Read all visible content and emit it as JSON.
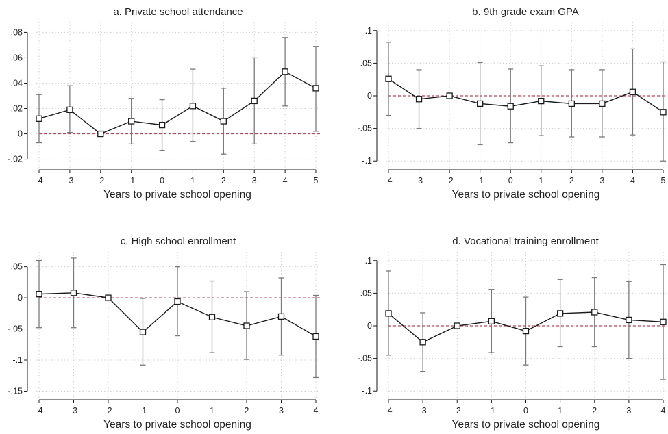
{
  "colors": {
    "line": "#1a1a1a",
    "errorbar": "#7a7a7a",
    "zero_line": "#b04a5e",
    "grid": "#d0d0d0",
    "axis": "#1a1a1a"
  },
  "chart_data": [
    {
      "type": "line",
      "title": "a. Private school attendance",
      "xlabel": "Years to private school opening",
      "ylabel": "",
      "x": [
        -4,
        -3,
        -2,
        -1,
        0,
        1,
        2,
        3,
        4,
        5
      ],
      "xtick_labels": [
        "-4",
        "-3",
        "-2",
        "-1",
        "0",
        "1",
        "2",
        "3",
        "4",
        "5"
      ],
      "y": [
        0.012,
        0.019,
        0.0,
        0.01,
        0.007,
        0.022,
        0.01,
        0.026,
        0.049,
        0.036
      ],
      "ci_low": [
        -0.007,
        0.001,
        0.0,
        -0.008,
        -0.013,
        -0.006,
        -0.016,
        -0.008,
        0.022,
        0.002
      ],
      "ci_high": [
        0.031,
        0.038,
        0.0,
        0.028,
        0.027,
        0.051,
        0.036,
        0.06,
        0.076,
        0.069
      ],
      "yticks": [
        -0.02,
        0,
        0.02,
        0.04,
        0.06,
        0.08
      ],
      "ytick_labels": [
        "-.02",
        "0",
        ".02",
        ".04",
        ".06",
        ".08"
      ],
      "ylim": [
        -0.024,
        0.084
      ],
      "reference_line": 0,
      "marker": "hollow-square",
      "grid": true
    },
    {
      "type": "line",
      "title": "b. 9th grade exam GPA",
      "xlabel": "Years to private school opening",
      "ylabel": "",
      "x": [
        -4,
        -3,
        -2,
        -1,
        0,
        1,
        2,
        3,
        4,
        5
      ],
      "xtick_labels": [
        "-4",
        "-3",
        "-2",
        "-1",
        "0",
        "1",
        "2",
        "3",
        "4",
        "5"
      ],
      "y": [
        0.026,
        -0.005,
        0.0,
        -0.012,
        -0.016,
        -0.008,
        -0.012,
        -0.012,
        0.006,
        -0.025
      ],
      "ci_low": [
        -0.03,
        -0.05,
        0.0,
        -0.075,
        -0.072,
        -0.061,
        -0.063,
        -0.063,
        -0.06,
        -0.1
      ],
      "ci_high": [
        0.082,
        0.04,
        0.0,
        0.051,
        0.041,
        0.046,
        0.04,
        0.04,
        0.072,
        0.052
      ],
      "yticks": [
        -0.1,
        -0.05,
        0,
        0.05,
        0.1
      ],
      "ytick_labels": [
        "-.1",
        "-.05",
        "0",
        ".05",
        ".1"
      ],
      "ylim": [
        -0.105,
        0.105
      ],
      "reference_line": 0,
      "marker": "hollow-square",
      "grid": true
    },
    {
      "type": "line",
      "title": "c. High school enrollment",
      "xlabel": "Years to private school opening",
      "ylabel": "",
      "x": [
        -4,
        -3,
        -2,
        -1,
        0,
        1,
        2,
        3,
        4
      ],
      "xtick_labels": [
        "-4",
        "-3",
        "-2",
        "-1",
        "0",
        "1",
        "2",
        "3",
        "4"
      ],
      "y": [
        0.006,
        0.008,
        0.0,
        -0.055,
        -0.006,
        -0.031,
        -0.045,
        -0.03,
        -0.062
      ],
      "ci_low": [
        -0.048,
        -0.048,
        0.0,
        -0.108,
        -0.061,
        -0.088,
        -0.099,
        -0.092,
        -0.128
      ],
      "ci_high": [
        0.06,
        0.064,
        0.0,
        -0.001,
        0.05,
        0.027,
        0.01,
        0.032,
        0.004
      ],
      "yticks": [
        -0.15,
        -0.1,
        -0.05,
        0,
        0.05
      ],
      "ytick_labels": [
        "-.15",
        "-.1",
        "-.05",
        "0",
        ".05"
      ],
      "ylim": [
        -0.155,
        0.065
      ],
      "reference_line": 0,
      "marker": "hollow-square",
      "grid": true
    },
    {
      "type": "line",
      "title": "d. Vocational training enrollment",
      "xlabel": "Years to private school opening",
      "ylabel": "",
      "x": [
        -4,
        -3,
        -2,
        -1,
        0,
        1,
        2,
        3,
        4
      ],
      "xtick_labels": [
        "-4",
        "-3",
        "-2",
        "-1",
        "0",
        "1",
        "2",
        "3",
        "4"
      ],
      "y": [
        0.019,
        -0.025,
        0.0,
        0.007,
        -0.008,
        0.019,
        0.021,
        0.009,
        0.006
      ],
      "ci_low": [
        -0.045,
        -0.07,
        0.0,
        -0.041,
        -0.06,
        -0.032,
        -0.032,
        -0.05,
        -0.082
      ],
      "ci_high": [
        0.084,
        0.02,
        0.0,
        0.056,
        0.044,
        0.071,
        0.074,
        0.068,
        0.094
      ],
      "yticks": [
        -0.1,
        -0.05,
        0,
        0.05,
        0.1
      ],
      "ytick_labels": [
        "-.1",
        "-.05",
        "0",
        ".05",
        ".1"
      ],
      "ylim": [
        -0.105,
        0.105
      ],
      "reference_line": 0,
      "marker": "hollow-square",
      "grid": true
    }
  ]
}
